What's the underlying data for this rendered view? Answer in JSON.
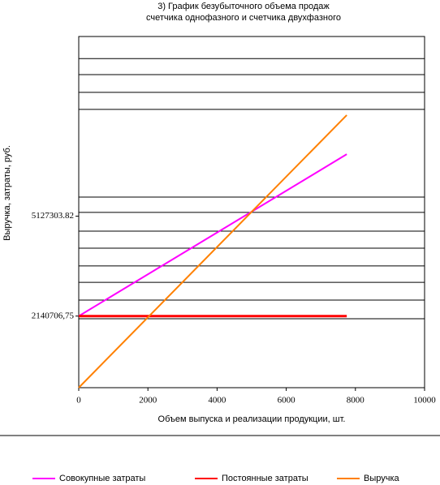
{
  "chart_data": {
    "type": "line",
    "title": "3) График безубыточного объема продаж",
    "subtitle": "счетчика однофазного и счетчика двухфазного",
    "x_label": "Объем выпуска и реализации продукции, шт.",
    "y_label": "Выручка, затраты, руб.",
    "xlim": [
      0,
      10000
    ],
    "xticks": [
      0,
      2000,
      4000,
      6000,
      8000,
      10000
    ],
    "ylim": [
      0,
      10500000
    ],
    "yticks": [
      {
        "value": 2140706.75,
        "label": "2140706,75"
      },
      {
        "value": 5127303.82,
        "label": "5127303.82"
      }
    ],
    "ygrid": [
      9840000,
      9360000,
      8830000,
      8320000,
      5700000,
      5240000,
      4680000,
      4170000,
      3640000,
      3150000,
      2620000,
      2060000
    ],
    "legend": "bottom",
    "series": [
      {
        "name": "Совокупные затраты",
        "color": "#ff00ff",
        "x": [
          0,
          7750
        ],
        "values": [
          2140706.75,
          6980000
        ]
      },
      {
        "name": "Постоянные затраты",
        "color": "#ff0000",
        "x": [
          0,
          7750
        ],
        "values": [
          2140706.75,
          2140706.75
        ]
      },
      {
        "name": "Выручка",
        "color": "#ff8000",
        "x": [
          0,
          7750
        ],
        "values": [
          0,
          8150000
        ]
      }
    ]
  }
}
